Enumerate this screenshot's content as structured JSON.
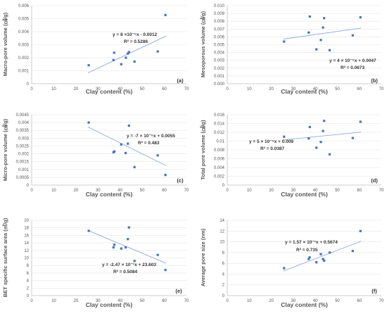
{
  "chart_data": [
    {
      "type": "scatter",
      "panel_label": "(a)",
      "ylabel": "Macro-pore volume (㎤/g)",
      "xlabel": "Clay content (%)",
      "xlim": [
        0,
        70
      ],
      "ylim": [
        0,
        0.006
      ],
      "yticks": [
        "0",
        "0.001",
        "0.002",
        "0.003",
        "0.004",
        "0.005",
        "0.006"
      ],
      "xticks": [
        "0",
        "10",
        "20",
        "30",
        "40",
        "50",
        "60",
        "70"
      ],
      "trendline": {
        "slope": 8e-05,
        "intercept": -0.0012,
        "equation": "y = 8 ×10⁻⁵x - 0.0012",
        "r2": "R² = 0.5286"
      },
      "points": [
        {
          "x": 25.8,
          "y": 0.00142
        },
        {
          "x": 37.0,
          "y": 0.00182
        },
        {
          "x": 37.3,
          "y": 0.00238
        },
        {
          "x": 40.5,
          "y": 0.0015
        },
        {
          "x": 42.6,
          "y": 0.002
        },
        {
          "x": 43.5,
          "y": 0.00232
        },
        {
          "x": 44.0,
          "y": 0.00243
        },
        {
          "x": 46.5,
          "y": 0.0017
        },
        {
          "x": 57.0,
          "y": 0.00248
        },
        {
          "x": 60.5,
          "y": 0.00528
        }
      ]
    },
    {
      "type": "scatter",
      "panel_label": "(b)",
      "ylabel": "Mesoporous volume (㎤/g)",
      "xlabel": "Clay content (%)",
      "xlim": [
        0,
        70
      ],
      "ylim": [
        0,
        0.01
      ],
      "yticks": [
        "0.000",
        "0.001",
        "0.002",
        "0.003",
        "0.004",
        "0.005",
        "0.006",
        "0.007",
        "0.008",
        "0.009",
        "0.010"
      ],
      "xticks": [
        "0",
        "10",
        "20",
        "30",
        "40",
        "50",
        "60",
        "70"
      ],
      "trendline": {
        "slope": 4e-05,
        "intercept": 0.0047,
        "equation": "y = 4 × 10⁻⁵x + 0.0047",
        "r2": "R² = 0.0673"
      },
      "points": [
        {
          "x": 25.8,
          "y": 0.0054
        },
        {
          "x": 37.0,
          "y": 0.00655
        },
        {
          "x": 37.5,
          "y": 0.0086
        },
        {
          "x": 40.5,
          "y": 0.0044
        },
        {
          "x": 42.5,
          "y": 0.0056
        },
        {
          "x": 43.5,
          "y": 0.0072
        },
        {
          "x": 44.0,
          "y": 0.0084
        },
        {
          "x": 46.5,
          "y": 0.0043
        },
        {
          "x": 57.0,
          "y": 0.0062
        },
        {
          "x": 60.5,
          "y": 0.0085
        }
      ]
    },
    {
      "type": "scatter",
      "panel_label": "(c)",
      "ylabel": "Micro-pore volume (㎤/g)",
      "xlabel": "Clay content (%)",
      "xlim": [
        0,
        70
      ],
      "ylim": [
        0,
        0.0045
      ],
      "yticks": [
        "0",
        "0.0005",
        "0.001",
        "0.0015",
        "0.002",
        "0.0025",
        "0.003",
        "0.0035",
        "0.004",
        "0.0045"
      ],
      "xticks": [
        "0",
        "10",
        "20",
        "30",
        "40",
        "50",
        "60",
        "70"
      ],
      "trendline": {
        "slope": -7e-05,
        "intercept": 0.0055,
        "equation": "y = -7 × 10⁻⁵x + 0.0055",
        "r2": "R² = 0.483"
      },
      "points": [
        {
          "x": 25.8,
          "y": 0.004
        },
        {
          "x": 37.0,
          "y": 0.0021
        },
        {
          "x": 37.4,
          "y": 0.00215
        },
        {
          "x": 40.5,
          "y": 0.0026
        },
        {
          "x": 42.5,
          "y": 0.00205
        },
        {
          "x": 43.5,
          "y": 0.00265
        },
        {
          "x": 44.0,
          "y": 0.0038
        },
        {
          "x": 46.5,
          "y": 0.00115
        },
        {
          "x": 57.0,
          "y": 0.0019
        },
        {
          "x": 60.5,
          "y": 0.00065
        }
      ]
    },
    {
      "type": "scatter",
      "panel_label": "(d)",
      "ylabel": "Total pore volume (㎤/g)",
      "xlabel": "Clay content (%)",
      "xlim": [
        0,
        70
      ],
      "ylim": [
        0,
        0.016
      ],
      "yticks": [
        "0",
        "0.002",
        "0.004",
        "0.006",
        "0.008",
        "0.01",
        "0.012",
        "0.014",
        "0.016"
      ],
      "xticks": [
        "0",
        "10",
        "20",
        "30",
        "40",
        "50",
        "60",
        "70"
      ],
      "trendline": {
        "slope": 5e-05,
        "intercept": 0.009,
        "equation": "y = 5 × 10⁻⁵x + 0.009",
        "r2": "R² = 0.0387"
      },
      "points": [
        {
          "x": 25.8,
          "y": 0.011
        },
        {
          "x": 37.0,
          "y": 0.0106
        },
        {
          "x": 37.5,
          "y": 0.0132
        },
        {
          "x": 40.5,
          "y": 0.0085
        },
        {
          "x": 42.5,
          "y": 0.0098
        },
        {
          "x": 43.5,
          "y": 0.0123
        },
        {
          "x": 44.0,
          "y": 0.0146
        },
        {
          "x": 46.5,
          "y": 0.007
        },
        {
          "x": 57.0,
          "y": 0.0107
        },
        {
          "x": 60.5,
          "y": 0.0144
        }
      ]
    },
    {
      "type": "scatter",
      "panel_label": "(e)",
      "ylabel": "BET specific surface area (㎡/g)",
      "xlabel": "Clay content (%)",
      "xlim": [
        0,
        70
      ],
      "ylim": [
        0,
        20
      ],
      "yticks": [
        "0",
        "2",
        "4",
        "6",
        "8",
        "10",
        "12",
        "14",
        "16",
        "18",
        "20"
      ],
      "xticks": [
        "0",
        "10",
        "20",
        "30",
        "40",
        "50",
        "60",
        "70"
      ],
      "trendline": {
        "slope": -0.247,
        "intercept": 23.603,
        "equation": "y = -2.47 × 10⁻¹x + 23.603",
        "r2": "R² = 0.5084"
      },
      "points": [
        {
          "x": 25.8,
          "y": 17.2
        },
        {
          "x": 37.0,
          "y": 12.8
        },
        {
          "x": 37.4,
          "y": 13.5
        },
        {
          "x": 40.5,
          "y": 12.5
        },
        {
          "x": 42.5,
          "y": 12.8
        },
        {
          "x": 43.5,
          "y": 15.0
        },
        {
          "x": 44.0,
          "y": 18.1
        },
        {
          "x": 46.5,
          "y": 9.2
        },
        {
          "x": 57.0,
          "y": 10.8
        },
        {
          "x": 60.5,
          "y": 6.8
        }
      ]
    },
    {
      "type": "scatter",
      "panel_label": "(f)",
      "ylabel": "Average pore size (nm)",
      "xlabel": "Clay content (%)",
      "xlim": [
        0,
        70
      ],
      "ylim": [
        0,
        14
      ],
      "yticks": [
        "0",
        "2",
        "4",
        "6",
        "8",
        "10",
        "12",
        "14"
      ],
      "xticks": [
        "0",
        "10",
        "20",
        "30",
        "40",
        "50",
        "60",
        "70"
      ],
      "trendline": {
        "slope": 0.157,
        "intercept": 0.5674,
        "equation": "y = 1.57 × 10⁻¹x + 0.5674",
        "r2": "R² = 0.735"
      },
      "points": [
        {
          "x": 25.8,
          "y": 5.1
        },
        {
          "x": 37.0,
          "y": 6.8
        },
        {
          "x": 37.4,
          "y": 7.1
        },
        {
          "x": 40.5,
          "y": 6.2
        },
        {
          "x": 42.5,
          "y": 7.7
        },
        {
          "x": 43.5,
          "y": 6.8
        },
        {
          "x": 44.0,
          "y": 6.5
        },
        {
          "x": 46.5,
          "y": 8.0
        },
        {
          "x": 57.0,
          "y": 8.3
        },
        {
          "x": 60.5,
          "y": 12.0
        }
      ]
    }
  ]
}
